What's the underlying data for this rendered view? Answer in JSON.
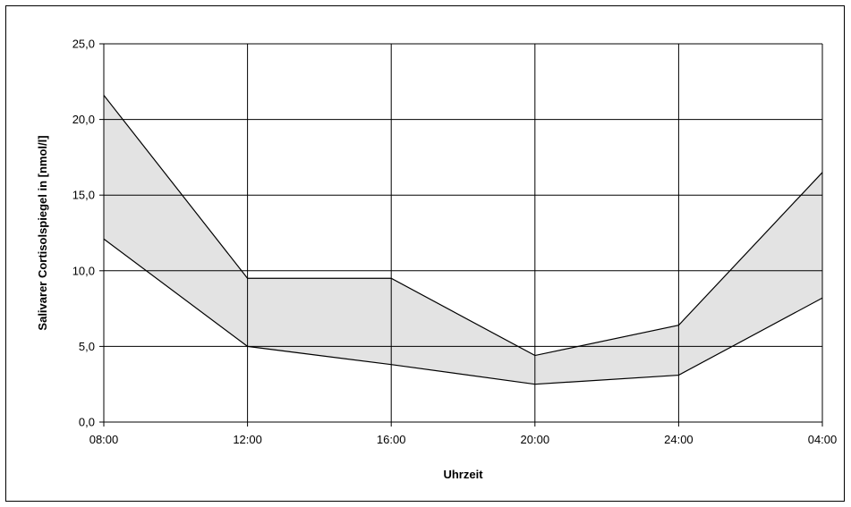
{
  "chart_data": {
    "type": "area",
    "title": "",
    "xlabel": "Uhrzeit",
    "ylabel": "Salivarer Cortisolspiegel in [nmol/l]",
    "categories": [
      "08:00",
      "12:00",
      "16:00",
      "20:00",
      "24:00",
      "04:00"
    ],
    "y_ticks": [
      "0,0",
      "5,0",
      "10,0",
      "15,0",
      "20,0",
      "25,0"
    ],
    "ylim": [
      0,
      25
    ],
    "grid": true,
    "band_color": "#e3e3e3",
    "line_color": "#000000",
    "series": [
      {
        "values": [
          21.6,
          9.5,
          9.5,
          4.4,
          6.4,
          16.5
        ]
      },
      {
        "values": [
          12.1,
          5.0,
          3.8,
          2.5,
          3.1,
          8.2
        ]
      }
    ]
  }
}
